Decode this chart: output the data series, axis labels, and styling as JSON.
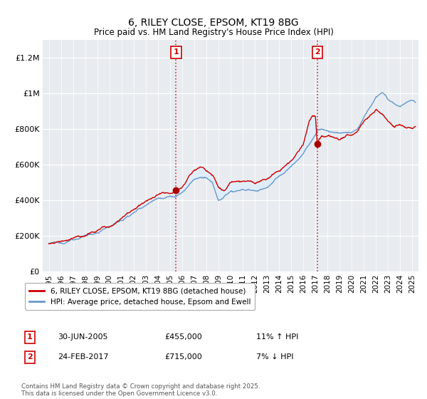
{
  "title": "6, RILEY CLOSE, EPSOM, KT19 8BG",
  "subtitle": "Price paid vs. HM Land Registry's House Price Index (HPI)",
  "xlim": [
    1994.5,
    2025.5
  ],
  "ylim": [
    0,
    1300000
  ],
  "yticks": [
    0,
    200000,
    400000,
    600000,
    800000,
    1000000,
    1200000
  ],
  "ytick_labels": [
    "£0",
    "£200K",
    "£400K",
    "£600K",
    "£800K",
    "£1M",
    "£1.2M"
  ],
  "xtick_years": [
    1995,
    1996,
    1997,
    1998,
    1999,
    2000,
    2001,
    2002,
    2003,
    2004,
    2005,
    2006,
    2007,
    2008,
    2009,
    2010,
    2011,
    2012,
    2013,
    2014,
    2015,
    2016,
    2017,
    2018,
    2019,
    2020,
    2021,
    2022,
    2023,
    2024,
    2025
  ],
  "sale1_x": 2005.5,
  "sale1_y": 455000,
  "sale1_label": "1",
  "sale1_date": "30-JUN-2005",
  "sale1_price": "£455,000",
  "sale1_hpi": "11% ↑ HPI",
  "sale2_x": 2017.15,
  "sale2_y": 715000,
  "sale2_label": "2",
  "sale2_date": "24-FEB-2017",
  "sale2_price": "£715,000",
  "sale2_hpi": "7% ↓ HPI",
  "line1_color": "#cc0000",
  "line2_color": "#6699cc",
  "fill_color": "#ddeeff",
  "dot_color": "#aa0000",
  "legend_label1": "6, RILEY CLOSE, EPSOM, KT19 8BG (detached house)",
  "legend_label2": "HPI: Average price, detached house, Epsom and Ewell",
  "footnote": "Contains HM Land Registry data © Crown copyright and database right 2025.\nThis data is licensed under the Open Government Licence v3.0.",
  "plot_bg_color": "#e8ecf0",
  "fig_bg_color": "#ffffff",
  "grid_color": "#ffffff"
}
